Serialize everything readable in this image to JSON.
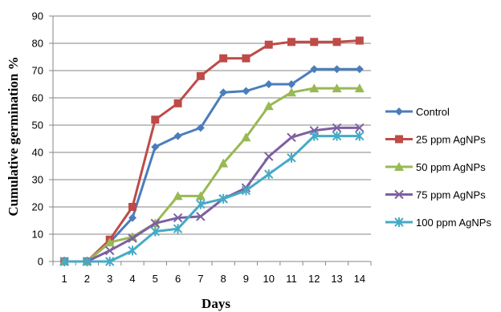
{
  "chart_data": {
    "type": "line",
    "title": "",
    "xlabel": "Days",
    "ylabel": "Cumulative germination %",
    "x": [
      1,
      2,
      3,
      4,
      5,
      6,
      7,
      8,
      9,
      10,
      11,
      12,
      13,
      14
    ],
    "ylim": [
      0,
      90
    ],
    "yticks": [
      0,
      10,
      20,
      30,
      40,
      50,
      60,
      70,
      80,
      90
    ],
    "grid": "horizontal",
    "legend_position": "right",
    "series": [
      {
        "name": "Control",
        "color": "#4a7ebb",
        "marker": "diamond",
        "values": [
          0,
          0,
          7,
          16,
          42,
          46,
          49,
          62,
          62.5,
          65,
          65,
          70.5,
          70.5,
          70.5
        ]
      },
      {
        "name": "25 ppm AgNPs",
        "color": "#be4b48",
        "marker": "square",
        "values": [
          0,
          0,
          8,
          20,
          52,
          58,
          68,
          74.5,
          74.5,
          79.5,
          80.5,
          80.5,
          80.5,
          81
        ]
      },
      {
        "name": "50 ppm AgNPs",
        "color": "#98b954",
        "marker": "triangle",
        "values": [
          0,
          0,
          7,
          9,
          14,
          24,
          24,
          36,
          45.5,
          57,
          62,
          63.5,
          63.5,
          63.5
        ]
      },
      {
        "name": "75 ppm AgNPs",
        "color": "#7d60a0",
        "marker": "x",
        "values": [
          0,
          0,
          4,
          8.5,
          14,
          16,
          16.5,
          23,
          27,
          38.5,
          45.5,
          48,
          49,
          49
        ]
      },
      {
        "name": "100 ppm AgNPs",
        "color": "#46aac5",
        "marker": "star",
        "values": [
          0,
          0,
          0,
          4,
          11,
          12,
          21,
          23,
          26,
          32,
          38,
          46,
          46,
          46
        ]
      }
    ]
  }
}
